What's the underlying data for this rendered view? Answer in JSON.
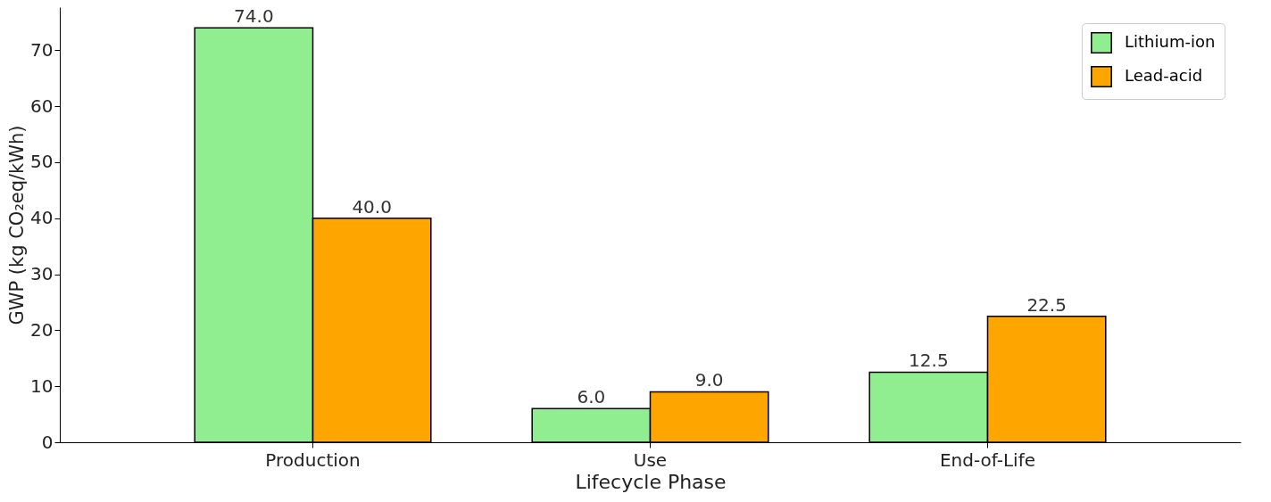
{
  "chart_data": {
    "type": "bar",
    "xlabel": "Lifecycle Phase",
    "ylabel": "GWP (kg CO₂eq/kWh)",
    "categories": [
      "Production",
      "Use",
      "End-of-Life"
    ],
    "series": [
      {
        "name": "Lithium-ion",
        "color": "#90ee90",
        "values": [
          74.0,
          6.0,
          12.5
        ],
        "value_labels": [
          "74.0",
          "6.0",
          "12.5"
        ]
      },
      {
        "name": "Lead-acid",
        "color": "#ffa500",
        "values": [
          40.0,
          9.0,
          22.5
        ],
        "value_labels": [
          "40.0",
          "9.0",
          "22.5"
        ]
      }
    ],
    "ylim": [
      0,
      77.7
    ],
    "yticks": [
      0,
      10,
      20,
      30,
      40,
      50,
      60,
      70
    ],
    "grid": false,
    "legend": "top right"
  }
}
